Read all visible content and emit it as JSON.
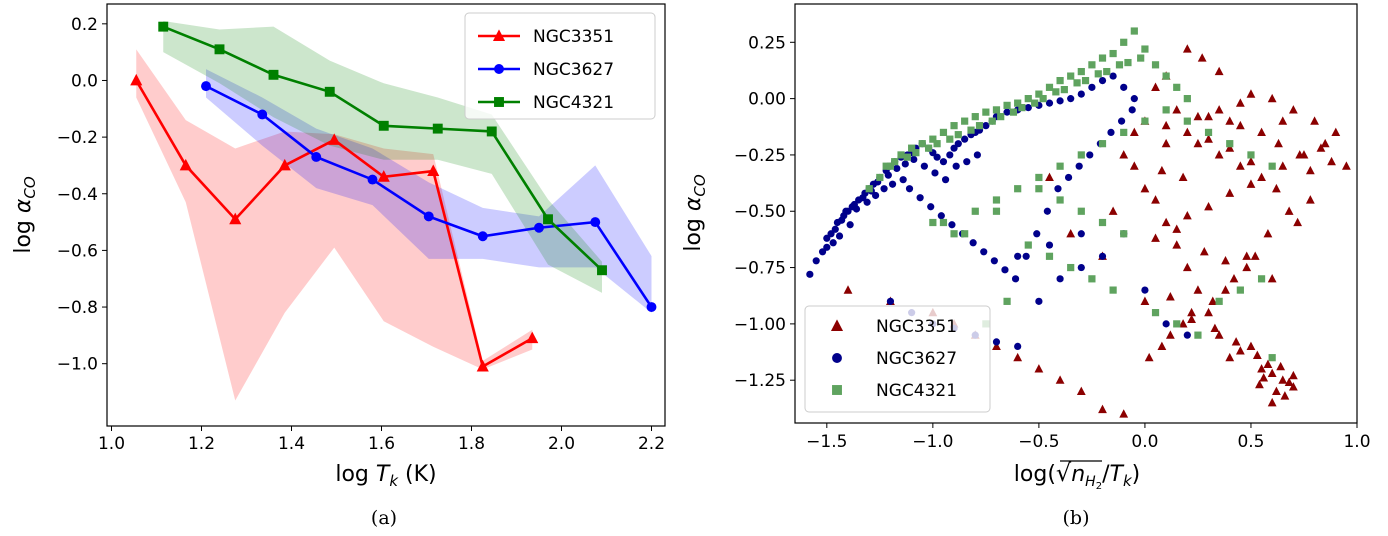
{
  "colors": {
    "NGC3351_a": "#ff0000",
    "NGC3627_a": "#0000ff",
    "NGC4321_a": "#008000",
    "NGC3351_b": "#8b0000",
    "NGC3627_b": "#00008b",
    "NGC4321_b": "#5fa35f"
  },
  "chart_data": [
    {
      "type": "line",
      "caption": "(a)",
      "xlabel_main": "log",
      "xlabel_var": "T",
      "xlabel_sub": "k",
      "xlabel_unit": " (K)",
      "ylabel_main": "log",
      "ylabel_var": "α",
      "ylabel_sub": "CO",
      "xlim": [
        0.99,
        2.23
      ],
      "ylim": [
        -1.22,
        0.27
      ],
      "xticks": [
        "1.0",
        "1.2",
        "1.4",
        "1.6",
        "1.8",
        "2.0",
        "2.2"
      ],
      "yticks": [
        "−1.0",
        "−0.8",
        "−0.6",
        "−0.4",
        "−0.2",
        "0.0",
        "0.2"
      ],
      "legend_position": "top-right",
      "series": [
        {
          "name": "NGC3351",
          "marker": "triangle",
          "x": [
            1.055,
            1.165,
            1.275,
            1.385,
            1.495,
            1.605,
            1.715,
            1.825,
            1.935
          ],
          "y": [
            0.0,
            -0.3,
            -0.49,
            -0.3,
            -0.21,
            -0.34,
            -0.32,
            -1.01,
            -0.91
          ],
          "band_upper": [
            0.11,
            -0.14,
            -0.24,
            -0.18,
            -0.19,
            -0.24,
            -0.26,
            -0.99,
            -0.88
          ],
          "band_lower": [
            -0.06,
            -0.43,
            -1.13,
            -0.82,
            -0.59,
            -0.85,
            -0.94,
            -1.02,
            -0.95
          ]
        },
        {
          "name": "NGC3627",
          "marker": "circle",
          "x": [
            1.21,
            1.335,
            1.455,
            1.58,
            1.705,
            1.825,
            1.95,
            2.075,
            2.2
          ],
          "y": [
            -0.02,
            -0.12,
            -0.27,
            -0.35,
            -0.48,
            -0.55,
            -0.52,
            -0.5,
            -0.8
          ],
          "band_upper": [
            0.04,
            -0.06,
            -0.17,
            -0.24,
            -0.36,
            -0.45,
            -0.48,
            -0.3,
            -0.62
          ],
          "band_lower": [
            -0.06,
            -0.23,
            -0.38,
            -0.44,
            -0.63,
            -0.63,
            -0.66,
            -0.66,
            -0.82
          ]
        },
        {
          "name": "NGC4321",
          "marker": "square",
          "x": [
            1.115,
            1.24,
            1.36,
            1.485,
            1.605,
            1.725,
            1.845,
            1.97,
            2.09
          ],
          "y": [
            0.19,
            0.11,
            0.02,
            -0.04,
            -0.16,
            -0.17,
            -0.18,
            -0.49,
            -0.67
          ],
          "band_upper": [
            0.21,
            0.18,
            0.19,
            0.07,
            -0.01,
            -0.06,
            -0.12,
            -0.42,
            -0.64
          ],
          "band_lower": [
            0.1,
            -0.01,
            -0.13,
            -0.23,
            -0.28,
            -0.28,
            -0.33,
            -0.65,
            -0.75
          ]
        }
      ]
    },
    {
      "type": "scatter",
      "caption": "(b)",
      "xlabel_pre": "log(",
      "xlabel_var": "n",
      "xlabel_sub": "H",
      "xlabel_subsub": "2",
      "xlabel_mid": "/",
      "xlabel_var2": "T",
      "xlabel_sub2": "k",
      "xlabel_post": ")",
      "ylabel_main": "log",
      "ylabel_var": "α",
      "ylabel_sub": "CO",
      "xlim": [
        -1.65,
        1.0
      ],
      "ylim": [
        -1.44,
        0.42
      ],
      "xticks": [
        "−1.5",
        "−1.0",
        "−0.5",
        "0.0",
        "0.5",
        "1.0"
      ],
      "yticks": [
        "−1.25",
        "−1.00",
        "−0.75",
        "−0.50",
        "−0.25",
        "0.00",
        "0.25"
      ],
      "legend_position": "bottom-left",
      "series": [
        {
          "name": "NGC3351",
          "marker": "triangle",
          "x": [
            0.2,
            0.27,
            0.35,
            0.1,
            0.05,
            0.5,
            0.6,
            0.7,
            0.8,
            0.9,
            0.95,
            0.85,
            0.75,
            0.65,
            0.55,
            0.45,
            0.4,
            0.3,
            0.15,
            0.0,
            -0.05,
            0.25,
            0.35,
            0.45,
            0.55,
            0.62,
            0.68,
            0.72,
            0.78,
            0.58,
            0.52,
            0.48,
            0.42,
            0.38,
            0.32,
            0.22,
            0.18,
            0.12,
            0.08,
            0.02,
            -0.1,
            -0.2,
            -0.3,
            -0.4,
            -0.5,
            -0.6,
            -0.7,
            -0.8,
            -0.9,
            -1.0,
            -1.2,
            -1.4,
            -0.2,
            -0.35,
            -0.15,
            -0.45,
            0.1,
            0.2,
            0.3,
            0.4,
            0.5,
            0.55,
            0.6,
            0.65,
            0.7,
            0.58,
            0.62,
            0.66,
            0.56,
            0.64,
            0.68,
            0.6,
            0.54,
            0.7,
            0.5,
            0.45,
            0.4,
            0.35,
            0.3,
            0.25,
            0.2,
            0.15,
            0.1,
            0.05,
            0.0,
            -0.05,
            0.1,
            0.25,
            0.35,
            0.45,
            0.5,
            0.4,
            0.3,
            0.2,
            0.15,
            0.05,
            -0.1,
            0.0,
            0.12,
            0.22,
            0.33,
            0.43,
            0.53,
            0.63,
            0.73,
            0.83,
            0.78,
            0.88,
            0.48,
            0.38,
            0.28,
            0.18,
            0.08,
            0.6,
            0.65
          ],
          "y": [
            0.22,
            0.18,
            0.12,
            0.1,
            0.05,
            0.02,
            0.0,
            -0.05,
            -0.1,
            -0.15,
            -0.3,
            -0.2,
            -0.25,
            -0.3,
            -0.15,
            -0.12,
            -0.1,
            -0.08,
            -0.05,
            -0.1,
            -0.15,
            -0.2,
            -0.25,
            -0.3,
            -0.35,
            -0.4,
            -0.5,
            -0.55,
            -0.45,
            -0.6,
            -0.7,
            -0.75,
            -0.8,
            -0.85,
            -0.9,
            -0.95,
            -1.0,
            -1.05,
            -1.1,
            -1.15,
            -1.4,
            -1.38,
            -1.3,
            -1.25,
            -1.2,
            -1.15,
            -1.1,
            -1.05,
            -1.0,
            -0.95,
            -0.9,
            -0.85,
            -0.7,
            -0.6,
            -0.5,
            -0.35,
            -0.2,
            -0.15,
            -0.18,
            -0.22,
            -0.28,
            -1.2,
            -1.22,
            -1.25,
            -1.28,
            -1.18,
            -1.3,
            -1.32,
            -1.24,
            -1.19,
            -1.26,
            -1.35,
            -1.27,
            -1.23,
            -1.1,
            -1.12,
            -1.15,
            -1.05,
            -0.95,
            -0.85,
            -0.75,
            -0.65,
            -0.55,
            -0.45,
            -0.4,
            -0.3,
            -0.12,
            -0.08,
            -0.05,
            -0.02,
            -0.38,
            -0.42,
            -0.48,
            -0.52,
            -0.58,
            -0.62,
            -0.25,
            -0.9,
            -0.88,
            -0.98,
            -1.02,
            -1.08,
            -1.14,
            -0.2,
            -0.25,
            -0.22,
            -0.32,
            -0.28,
            -0.7,
            -0.72,
            -0.68,
            -0.35,
            -0.32,
            -0.8,
            -0.1
          ],
          "color_key": "NGC3351_b"
        },
        {
          "name": "NGC3627",
          "marker": "circle",
          "x": [
            -1.58,
            -1.55,
            -1.52,
            -1.5,
            -1.48,
            -1.45,
            -1.42,
            -1.4,
            -1.38,
            -1.35,
            -1.32,
            -1.3,
            -1.28,
            -1.25,
            -1.22,
            -1.2,
            -1.18,
            -1.15,
            -1.12,
            -1.1,
            -1.08,
            -1.05,
            -1.02,
            -1.0,
            -0.98,
            -0.95,
            -0.92,
            -0.9,
            -0.88,
            -0.85,
            -0.82,
            -0.8,
            -0.78,
            -0.75,
            -0.72,
            -0.7,
            -0.65,
            -0.6,
            -0.55,
            -0.5,
            -0.45,
            -0.4,
            -0.35,
            -0.3,
            -0.25,
            -0.2,
            -0.15,
            -0.1,
            -0.05,
            -1.46,
            -1.43,
            -1.41,
            -1.37,
            -1.33,
            -1.29,
            -1.26,
            -1.21,
            -1.17,
            -1.13,
            -1.09,
            -1.04,
            -0.99,
            -0.94,
            -0.89,
            -0.84,
            -0.79,
            -1.5,
            -1.47,
            -1.44,
            -1.39,
            -1.36,
            -1.31,
            -1.27,
            -1.23,
            -1.19,
            -1.14,
            -1.11,
            -1.06,
            -1.01,
            -0.96,
            -0.91,
            -0.86,
            -0.81,
            -0.76,
            -0.71,
            -0.66,
            -0.61,
            -0.56,
            -0.51,
            -0.46,
            -0.41,
            -0.36,
            -0.31,
            -0.26,
            -0.21,
            -0.16,
            -0.11,
            -0.06,
            -1.2,
            -1.1,
            -1.0,
            -0.9,
            -0.8,
            -0.7,
            -0.6,
            -0.5,
            -0.4,
            -0.3,
            -0.2,
            -0.1,
            0.0,
            0.1,
            0.2,
            -0.3,
            -0.45,
            -0.6
          ],
          "y": [
            -0.78,
            -0.72,
            -0.68,
            -0.62,
            -0.6,
            -0.55,
            -0.52,
            -0.5,
            -0.48,
            -0.45,
            -0.42,
            -0.4,
            -0.38,
            -0.35,
            -0.32,
            -0.3,
            -0.28,
            -0.26,
            -0.25,
            -0.24,
            -0.22,
            -0.2,
            -0.22,
            -0.24,
            -0.26,
            -0.28,
            -0.25,
            -0.22,
            -0.2,
            -0.18,
            -0.16,
            -0.15,
            -0.14,
            -0.12,
            -0.1,
            -0.08,
            -0.06,
            -0.05,
            -0.04,
            -0.03,
            -0.02,
            -0.01,
            0.0,
            0.02,
            0.05,
            0.08,
            0.1,
            0.05,
            0.0,
            -0.58,
            -0.54,
            -0.5,
            -0.47,
            -0.44,
            -0.41,
            -0.37,
            -0.34,
            -0.31,
            -0.29,
            -0.27,
            -0.3,
            -0.33,
            -0.36,
            -0.3,
            -0.28,
            -0.25,
            -0.66,
            -0.64,
            -0.61,
            -0.56,
            -0.49,
            -0.46,
            -0.43,
            -0.4,
            -0.38,
            -0.36,
            -0.4,
            -0.44,
            -0.48,
            -0.52,
            -0.56,
            -0.6,
            -0.64,
            -0.68,
            -0.72,
            -0.76,
            -0.8,
            -0.7,
            -0.6,
            -0.5,
            -0.4,
            -0.35,
            -0.3,
            -0.25,
            -0.2,
            -0.15,
            -0.1,
            -0.05,
            -0.9,
            -0.95,
            -1.0,
            -1.02,
            -1.05,
            -1.08,
            -1.1,
            -0.9,
            -0.8,
            -0.75,
            -0.7,
            -0.6,
            -0.85,
            -1.0,
            -1.05,
            -0.6,
            -0.65,
            -0.7
          ],
          "color_key": "NGC3627_b"
        },
        {
          "name": "NGC4321",
          "marker": "square",
          "x": [
            -1.3,
            -1.25,
            -1.2,
            -1.15,
            -1.1,
            -1.05,
            -1.0,
            -0.95,
            -0.9,
            -0.85,
            -0.8,
            -0.75,
            -0.7,
            -0.65,
            -0.6,
            -0.55,
            -0.5,
            -0.45,
            -0.4,
            -0.35,
            -0.3,
            -0.25,
            -0.2,
            -0.15,
            -0.1,
            -0.05,
            0.0,
            0.05,
            0.1,
            0.15,
            0.2,
            -1.22,
            -1.12,
            -1.02,
            -0.92,
            -0.82,
            -0.72,
            -0.62,
            -0.52,
            -0.42,
            -0.32,
            -0.22,
            -0.12,
            -0.02,
            -1.18,
            -1.08,
            -0.98,
            -0.88,
            -0.78,
            -0.68,
            -0.58,
            -0.48,
            -0.38,
            -0.28,
            -0.18,
            -0.08,
            -1.0,
            -0.9,
            -0.8,
            -0.7,
            -0.6,
            -0.5,
            -0.4,
            -0.3,
            -0.2,
            -0.1,
            0.0,
            0.1,
            0.2,
            0.3,
            0.4,
            0.5,
            0.6,
            -0.55,
            -0.45,
            -0.35,
            -0.25,
            -0.15,
            -0.5,
            -0.4,
            -0.3,
            -0.2,
            -0.1,
            0.05,
            0.15,
            0.25,
            0.35,
            0.45,
            0.55,
            0.6,
            -0.75,
            -0.65,
            -0.85,
            -0.95,
            -0.7
          ],
          "y": [
            -0.4,
            -0.35,
            -0.3,
            -0.25,
            -0.22,
            -0.2,
            -0.18,
            -0.15,
            -0.12,
            -0.1,
            -0.08,
            -0.06,
            -0.05,
            -0.03,
            -0.02,
            0.0,
            0.02,
            0.05,
            0.08,
            0.1,
            0.12,
            0.15,
            0.18,
            0.2,
            0.25,
            0.3,
            0.22,
            0.15,
            0.1,
            0.05,
            0.0,
            -0.3,
            -0.26,
            -0.22,
            -0.18,
            -0.14,
            -0.1,
            -0.06,
            -0.02,
            0.03,
            0.07,
            0.11,
            0.15,
            0.18,
            -0.28,
            -0.24,
            -0.2,
            -0.16,
            -0.12,
            -0.08,
            -0.04,
            0.0,
            0.04,
            0.08,
            0.12,
            0.16,
            -0.55,
            -0.6,
            -0.5,
            -0.45,
            -0.4,
            -0.35,
            -0.3,
            -0.25,
            -0.2,
            -0.15,
            -0.1,
            -0.05,
            -0.1,
            -0.15,
            -0.2,
            -0.25,
            -0.3,
            -0.65,
            -0.7,
            -0.75,
            -0.8,
            -0.85,
            -0.4,
            -0.45,
            -0.5,
            -0.55,
            -0.6,
            -0.95,
            -1.0,
            -1.05,
            -0.9,
            -0.85,
            -0.8,
            -1.15,
            -1.0,
            -0.9,
            -0.6,
            -0.55,
            -0.5
          ],
          "color_key": "NGC4321_b"
        }
      ]
    }
  ]
}
